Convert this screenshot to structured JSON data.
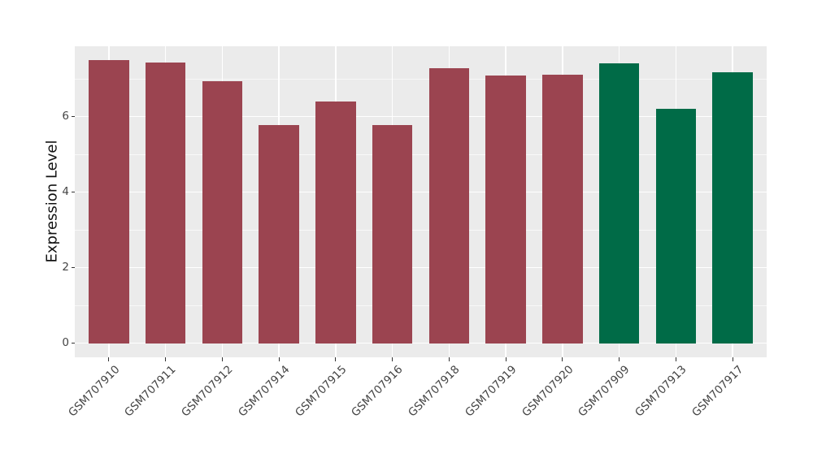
{
  "chart_data": {
    "type": "bar",
    "title": "",
    "xlabel": "",
    "ylabel": "Expression Level",
    "categories": [
      "GSM707910",
      "GSM707911",
      "GSM707912",
      "GSM707914",
      "GSM707915",
      "GSM707916",
      "GSM707918",
      "GSM707919",
      "GSM707920",
      "GSM707909",
      "GSM707913",
      "GSM707917"
    ],
    "values": [
      7.48,
      7.42,
      6.94,
      5.78,
      6.39,
      5.77,
      7.27,
      7.09,
      7.1,
      7.41,
      6.2,
      7.17
    ],
    "bar_colors": [
      "#9B4450",
      "#9B4450",
      "#9B4450",
      "#9B4450",
      "#9B4450",
      "#9B4450",
      "#9B4450",
      "#9B4450",
      "#9B4450",
      "#006B47",
      "#006B47",
      "#006B47"
    ],
    "yticks_major": [
      0,
      2,
      4,
      6
    ],
    "ytick_labels": [
      "0",
      "2",
      "4",
      "6"
    ],
    "yticks_minor": [
      1,
      3,
      5,
      7
    ],
    "ylim": [
      0,
      7.85
    ],
    "grid": "major and minor horizontal white lines, vertical white line at each category center",
    "legend": "none",
    "panel_bg": "#EBEBEB",
    "grid_color": "#FFFFFF",
    "axis_text_color": "#444444",
    "axis_title_color": "#111111"
  }
}
